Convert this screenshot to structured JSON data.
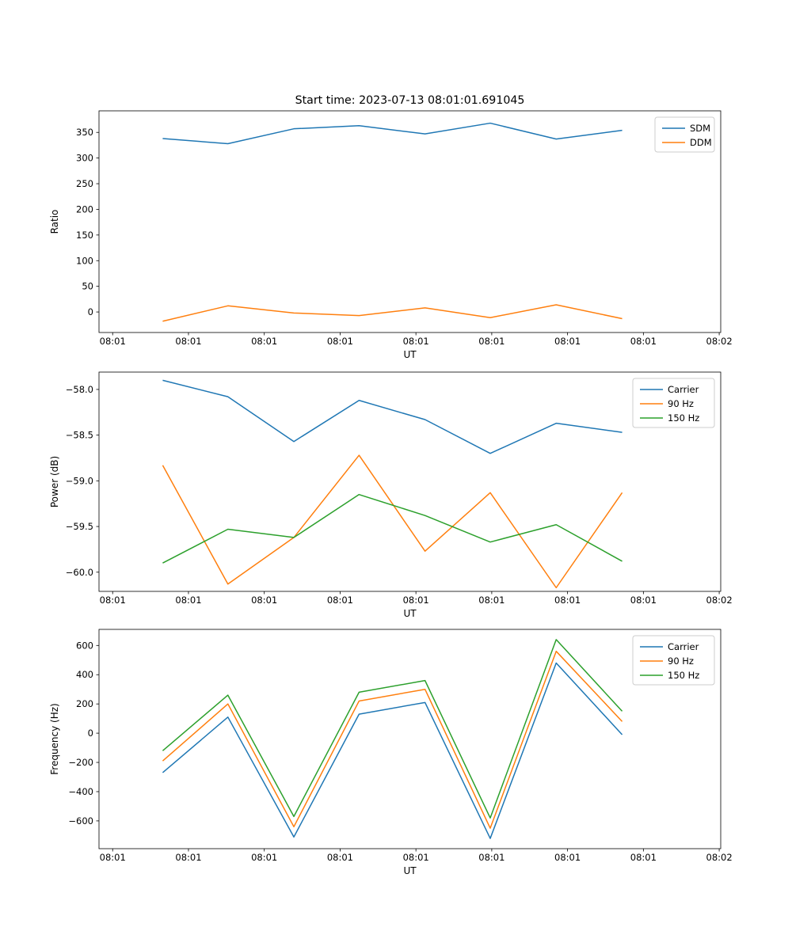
{
  "figure": {
    "title": "Start time: 2023-07-13 08:01:01.691045",
    "background": "#ffffff"
  },
  "palette": {
    "blue": "#1f77b4",
    "orange": "#ff7f0e",
    "green": "#2ca02c"
  },
  "chart_data": [
    {
      "type": "line",
      "name": "ratio-panel",
      "title": "Start time: 2023-07-13 08:01:01.691045",
      "xlabel": "UT",
      "ylabel": "Ratio",
      "xlim": [
        -0.18,
        8.02
      ],
      "ylim": [
        -40,
        392
      ],
      "x_ticks": [
        0,
        1,
        2,
        3,
        4,
        5,
        6,
        7,
        8
      ],
      "x_tick_labels": [
        "08:01",
        "08:01",
        "08:01",
        "08:01",
        "08:01",
        "08:01",
        "08:01",
        "08:01",
        "08:02"
      ],
      "y_ticks": [
        0,
        50,
        100,
        150,
        200,
        250,
        300,
        350
      ],
      "y_tick_labels": [
        "0",
        "50",
        "100",
        "150",
        "200",
        "250",
        "300",
        "350"
      ],
      "x": [
        0.66,
        1.52,
        2.39,
        3.25,
        4.12,
        4.98,
        5.85,
        6.72
      ],
      "series": [
        {
          "name": "SDM",
          "color": "#1f77b4",
          "values": [
            338,
            328,
            357,
            363,
            347,
            368,
            337,
            354
          ]
        },
        {
          "name": "DDM",
          "color": "#ff7f0e",
          "values": [
            -18,
            12,
            -2,
            -7,
            8,
            -11,
            14,
            -13
          ]
        }
      ],
      "legend": {
        "position": "upper right",
        "labels": [
          "SDM",
          "DDM"
        ]
      },
      "grid": false
    },
    {
      "type": "line",
      "name": "power-panel",
      "title": "",
      "xlabel": "UT",
      "ylabel": "Power (dB)",
      "xlim": [
        -0.18,
        8.02
      ],
      "ylim": [
        -60.21,
        -57.81
      ],
      "x_ticks": [
        0,
        1,
        2,
        3,
        4,
        5,
        6,
        7,
        8
      ],
      "x_tick_labels": [
        "08:01",
        "08:01",
        "08:01",
        "08:01",
        "08:01",
        "08:01",
        "08:01",
        "08:01",
        "08:02"
      ],
      "y_ticks": [
        -58.0,
        -58.5,
        -59.0,
        -59.5,
        -60.0
      ],
      "y_tick_labels": [
        "−58.0",
        "−58.5",
        "−59.0",
        "−59.5",
        "−60.0"
      ],
      "x": [
        0.66,
        1.52,
        2.39,
        3.25,
        4.12,
        4.98,
        5.85,
        6.72
      ],
      "series": [
        {
          "name": "Carrier",
          "color": "#1f77b4",
          "values": [
            -57.9,
            -58.08,
            -58.57,
            -58.12,
            -58.33,
            -58.7,
            -58.37,
            -58.47
          ]
        },
        {
          "name": "90 Hz",
          "color": "#ff7f0e",
          "values": [
            -58.83,
            -60.13,
            -59.62,
            -58.72,
            -59.77,
            -59.13,
            -60.17,
            -59.13
          ]
        },
        {
          "name": "150 Hz",
          "color": "#2ca02c",
          "values": [
            -59.9,
            -59.53,
            -59.62,
            -59.15,
            -59.38,
            -59.67,
            -59.48,
            -59.88
          ]
        }
      ],
      "legend": {
        "position": "upper right",
        "labels": [
          "Carrier",
          "90 Hz",
          "150 Hz"
        ]
      },
      "grid": false
    },
    {
      "type": "line",
      "name": "frequency-panel",
      "title": "",
      "xlabel": "UT",
      "ylabel": "Frequency (Hz)",
      "xlim": [
        -0.18,
        8.02
      ],
      "ylim": [
        -790,
        710
      ],
      "x_ticks": [
        0,
        1,
        2,
        3,
        4,
        5,
        6,
        7,
        8
      ],
      "x_tick_labels": [
        "08:01",
        "08:01",
        "08:01",
        "08:01",
        "08:01",
        "08:01",
        "08:01",
        "08:01",
        "08:02"
      ],
      "y_ticks": [
        -600,
        -400,
        -200,
        0,
        200,
        400,
        600
      ],
      "y_tick_labels": [
        "−600",
        "−400",
        "−200",
        "0",
        "200",
        "400",
        "600"
      ],
      "x": [
        0.66,
        1.52,
        2.39,
        3.25,
        4.12,
        4.98,
        5.85,
        6.72
      ],
      "series": [
        {
          "name": "Carrier",
          "color": "#1f77b4",
          "values": [
            -270,
            110,
            -710,
            130,
            210,
            -720,
            480,
            -10
          ]
        },
        {
          "name": "90 Hz",
          "color": "#ff7f0e",
          "values": [
            -190,
            200,
            -640,
            220,
            300,
            -650,
            560,
            80
          ]
        },
        {
          "name": "150 Hz",
          "color": "#2ca02c",
          "values": [
            -120,
            260,
            -570,
            280,
            360,
            -580,
            640,
            150
          ]
        }
      ],
      "legend": {
        "position": "upper right",
        "labels": [
          "Carrier",
          "90 Hz",
          "150 Hz"
        ]
      },
      "grid": false
    }
  ]
}
